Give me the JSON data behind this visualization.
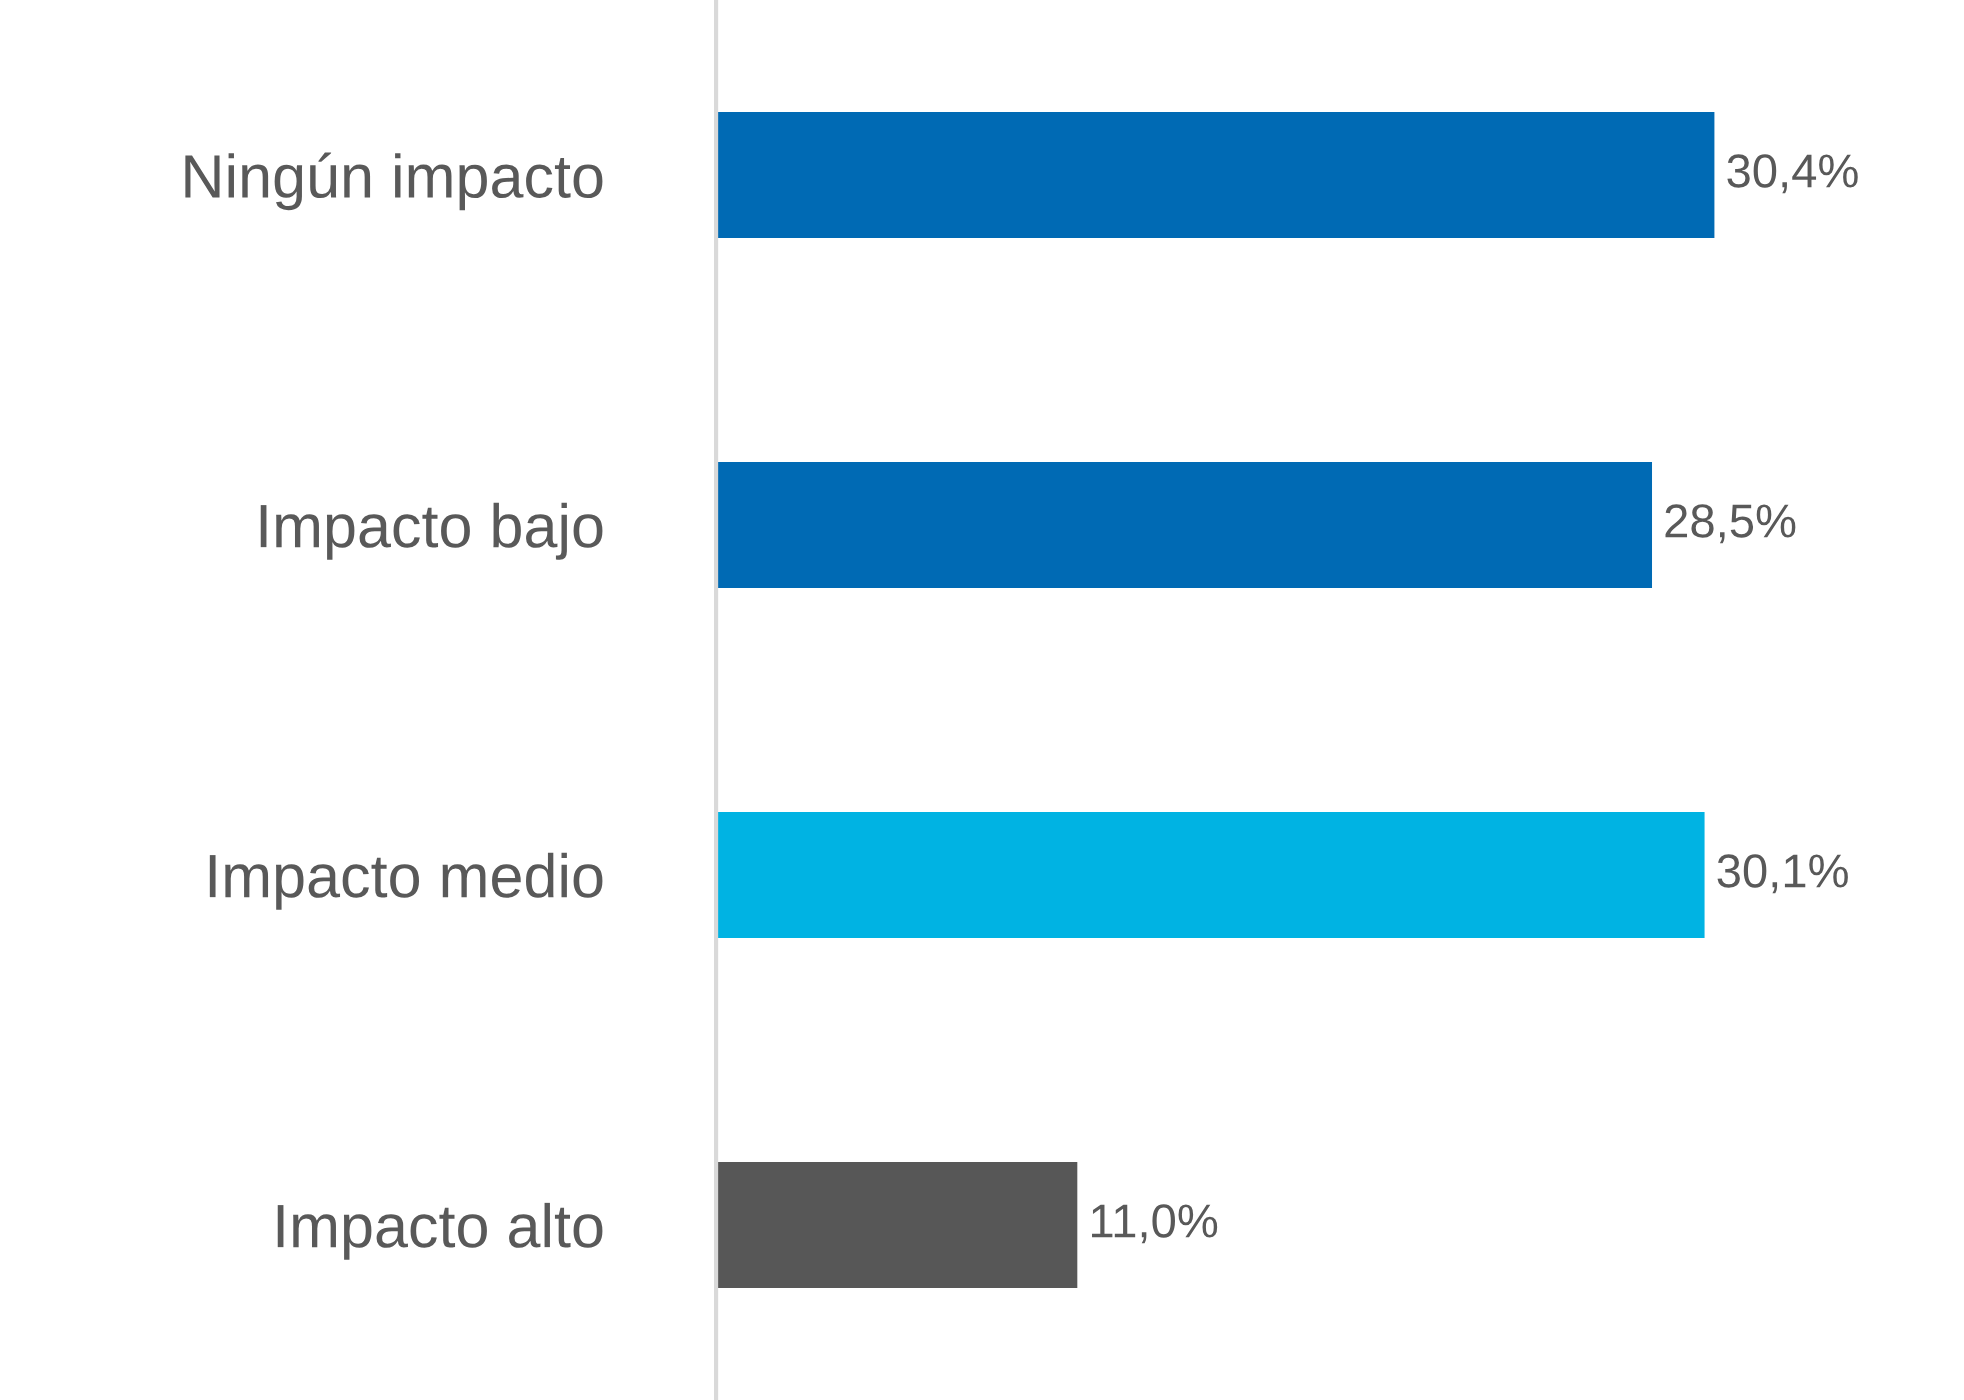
{
  "chart_data": {
    "type": "bar",
    "orientation": "horizontal",
    "categories": [
      "Ningún impacto",
      "Impacto bajo",
      "Impacto medio",
      "Impacto alto"
    ],
    "values": [
      30.4,
      28.5,
      30.1,
      11.0
    ],
    "colors": [
      "#006ab4",
      "#006ab4",
      "#00b3e3",
      "#575757"
    ],
    "value_labels": [
      "30,4%",
      "28,5%",
      "30,1%",
      "11,0%"
    ],
    "grid": false,
    "legend": false
  }
}
